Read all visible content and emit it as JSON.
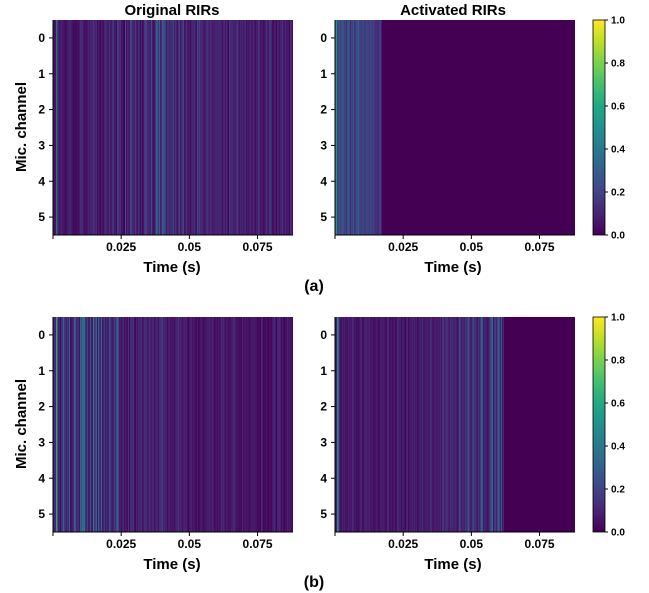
{
  "chart_data": [
    {
      "type": "heatmap",
      "row": "(a)",
      "title": "Original RIRs",
      "xlabel": "Time (s)",
      "ylabel": "Mic. channel",
      "xticks": [
        "0.025",
        "0.05",
        "0.075"
      ],
      "yticks": [
        "0",
        "1",
        "2",
        "3",
        "4",
        "5"
      ],
      "xlim": [
        0,
        0.088
      ],
      "active_time_range": [
        0,
        0.088
      ],
      "peak_time": 0.038,
      "typical_value": 0.1,
      "max_value": 0.3
    },
    {
      "type": "heatmap",
      "row": "(a)",
      "title": "Activated RIRs",
      "xlabel": "Time (s)",
      "ylabel": "",
      "xticks": [
        "0.025",
        "0.05",
        "0.075"
      ],
      "yticks": [
        "0",
        "1",
        "2",
        "3",
        "4",
        "5"
      ],
      "xlim": [
        0,
        0.088
      ],
      "active_time_range": [
        0,
        0.017
      ],
      "peak_time": 0.005,
      "typical_value": 0.1,
      "max_value": 0.4
    },
    {
      "type": "heatmap",
      "row": "(b)",
      "title": "",
      "xlabel": "Time (s)",
      "ylabel": "Mic. channel",
      "xticks": [
        "0.025",
        "0.05",
        "0.075"
      ],
      "yticks": [
        "0",
        "1",
        "2",
        "3",
        "4",
        "5"
      ],
      "xlim": [
        0,
        0.088
      ],
      "active_time_range": [
        0,
        0.088
      ],
      "peak_time": 0.012,
      "typical_value": 0.08,
      "max_value": 0.5
    },
    {
      "type": "heatmap",
      "row": "(b)",
      "title": "",
      "xlabel": "Time (s)",
      "ylabel": "",
      "xticks": [
        "0.025",
        "0.05",
        "0.075"
      ],
      "yticks": [
        "0",
        "1",
        "2",
        "3",
        "4",
        "5"
      ],
      "xlim": [
        0,
        0.088
      ],
      "active_time_range": [
        0,
        0.062
      ],
      "peak_time": 0.057,
      "typical_value": 0.08,
      "max_value": 0.45
    }
  ],
  "colorbar": {
    "colormap": "viridis",
    "range": [
      0,
      1
    ],
    "ticks": [
      "0.0",
      "0.2",
      "0.4",
      "0.6",
      "0.8",
      "1.0"
    ]
  },
  "captions": [
    "(a)",
    "(b)"
  ]
}
